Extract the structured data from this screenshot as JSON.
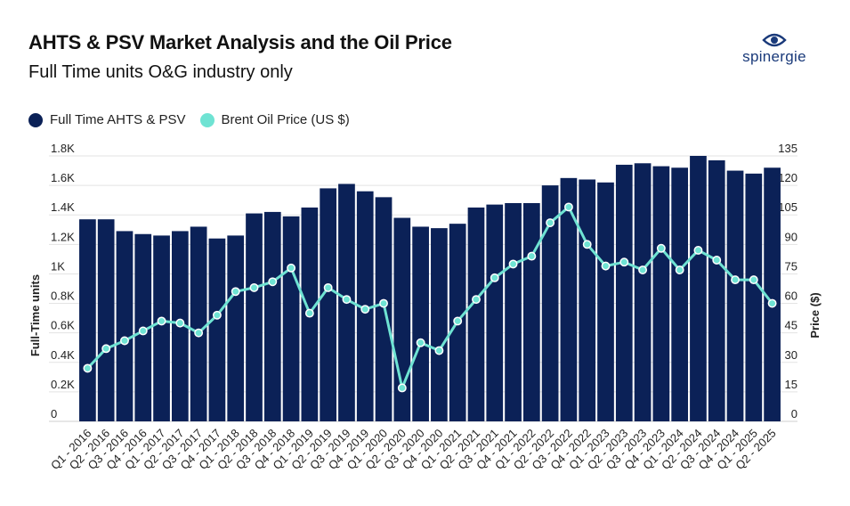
{
  "header": {
    "title": "AHTS & PSV Market Analysis and the Oil Price",
    "subtitle": "Full Time units O&G industry only",
    "brand": "spinergie"
  },
  "colors": {
    "bar": "#0b2157",
    "line": "#6fe3d3",
    "line_dark": "#4ccfc0",
    "logo": "#1a3a7a"
  },
  "legend": {
    "items": [
      {
        "label": "Full Time AHTS & PSV",
        "color": "#0b2157"
      },
      {
        "label": "Brent Oil Price (US $)",
        "color": "#6fe3d3"
      }
    ]
  },
  "chart_data": {
    "type": "bar",
    "categories": [
      "Q1 - 2016",
      "Q2 - 2016",
      "Q3 - 2016",
      "Q4 - 2016",
      "Q1 - 2017",
      "Q2 - 2017",
      "Q3 - 2017",
      "Q4 - 2017",
      "Q1 - 2018",
      "Q2 - 2018",
      "Q3 - 2018",
      "Q4 - 2018",
      "Q1 - 2019",
      "Q2 - 2019",
      "Q3 - 2019",
      "Q4 - 2019",
      "Q1 - 2020",
      "Q2 - 2020",
      "Q3 - 2020",
      "Q4 - 2020",
      "Q1 - 2021",
      "Q2 - 2021",
      "Q3 - 2021",
      "Q4 - 2021",
      "Q1 - 2022",
      "Q2 - 2022",
      "Q3 - 2022",
      "Q4 - 2022",
      "Q1 - 2023",
      "Q2 - 2023",
      "Q3 - 2023",
      "Q4 - 2023",
      "Q1 - 2024",
      "Q2 - 2024",
      "Q3 - 2024",
      "Q4 - 2024",
      "Q1 - 2025",
      "Q2 - 2025"
    ],
    "series": [
      {
        "name": "Full Time AHTS & PSV",
        "kind": "bar",
        "axis": "left",
        "values": [
          1370,
          1370,
          1290,
          1270,
          1260,
          1290,
          1320,
          1240,
          1260,
          1410,
          1420,
          1390,
          1450,
          1580,
          1610,
          1560,
          1520,
          1380,
          1320,
          1310,
          1340,
          1450,
          1470,
          1480,
          1480,
          1600,
          1650,
          1640,
          1620,
          1740,
          1750,
          1730,
          1720,
          1800,
          1770,
          1700,
          1680,
          1720
        ]
      },
      {
        "name": "Brent Oil Price (US $)",
        "kind": "line",
        "axis": "right",
        "values": [
          27,
          37,
          41,
          46,
          51,
          50,
          45,
          54,
          66,
          68,
          71,
          78,
          55,
          68,
          62,
          57,
          60,
          17,
          40,
          36,
          51,
          62,
          73,
          80,
          84,
          101,
          109,
          90,
          79,
          81,
          77,
          88,
          77,
          87,
          82,
          72,
          72,
          60
        ]
      }
    ],
    "y_left": {
      "label": "Full-Time units",
      "lim": [
        0,
        1800
      ],
      "ticks": [
        0,
        200,
        400,
        600,
        800,
        1000,
        1200,
        1400,
        1600,
        1800
      ],
      "tick_labels": [
        "0",
        "0.2K",
        "0.4K",
        "0.6K",
        "0.8K",
        "1K",
        "1.2K",
        "1.4K",
        "1.6K",
        "1.8K"
      ]
    },
    "y_right": {
      "label": "Price ($)",
      "lim": [
        0,
        135
      ],
      "ticks": [
        0,
        15,
        30,
        45,
        60,
        75,
        90,
        105,
        120,
        135
      ],
      "tick_labels": [
        "0",
        "15",
        "30",
        "45",
        "60",
        "75",
        "90",
        "105",
        "120",
        "135"
      ]
    },
    "grid": true,
    "legend_position": "top-left"
  }
}
